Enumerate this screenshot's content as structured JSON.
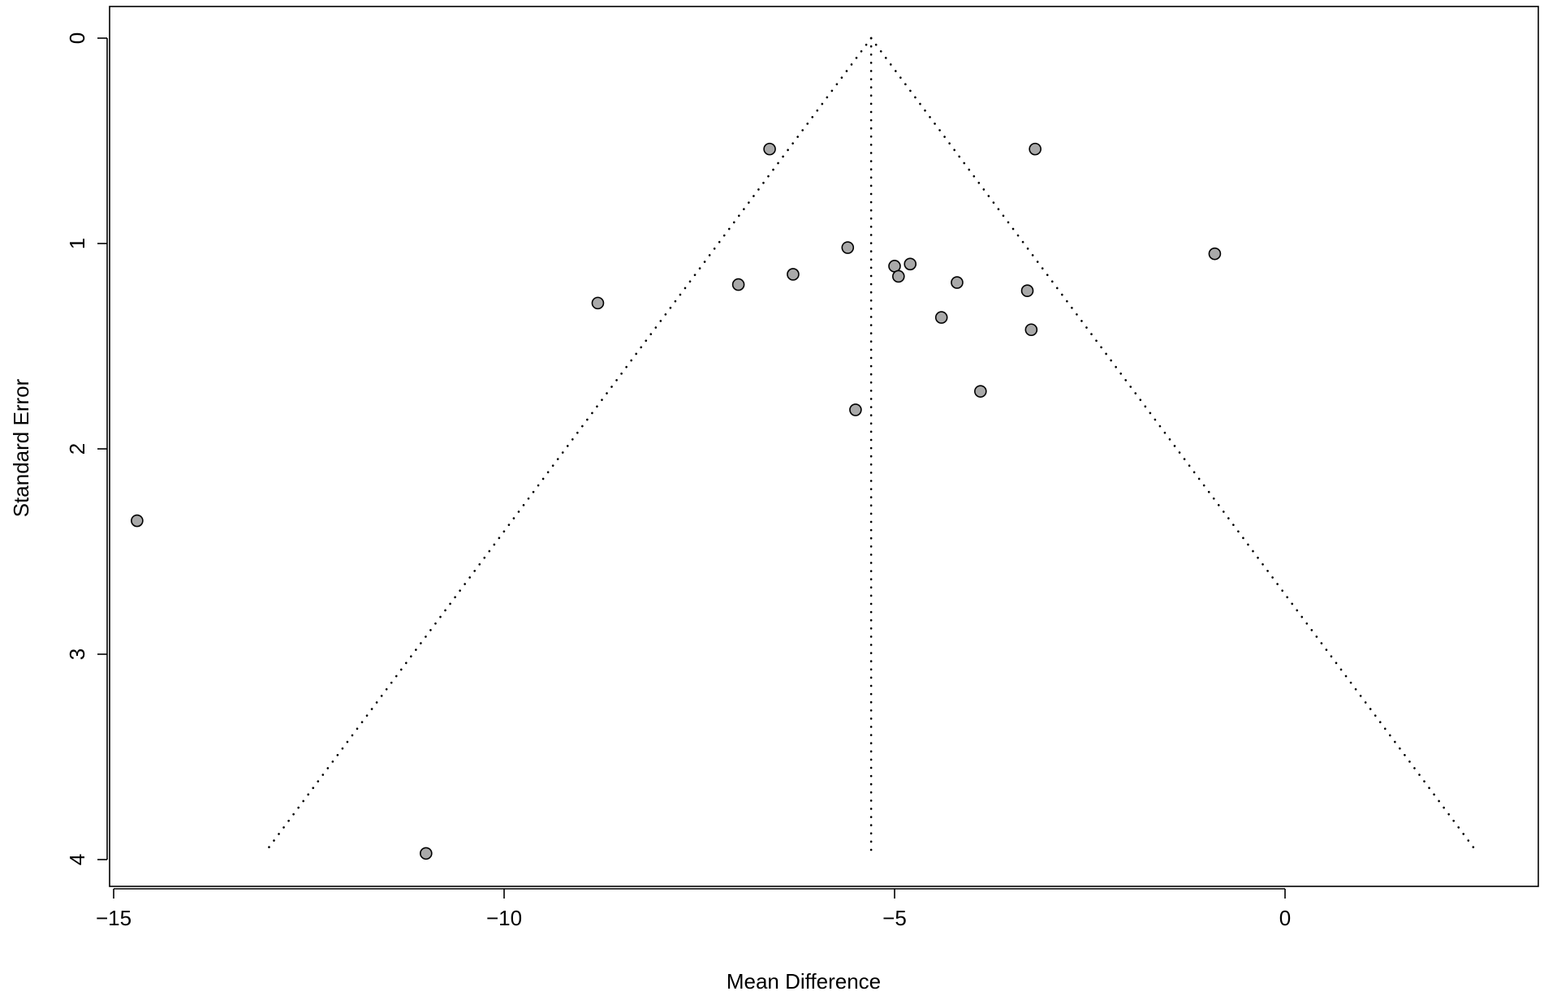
{
  "chart_data": {
    "type": "scatter",
    "title": "",
    "xlabel": "Mean Difference",
    "ylabel": "Standard Error",
    "xlim": [
      -15,
      2.8
    ],
    "ylim": [
      0,
      4.13
    ],
    "y_reversed": true,
    "x_ticks": [
      -15,
      -10,
      -5,
      0
    ],
    "x_tick_labels": [
      "−15",
      "−10",
      "−5",
      "0"
    ],
    "y_ticks": [
      0,
      1,
      2,
      3,
      4
    ],
    "y_tick_labels": [
      "0",
      "1",
      "2",
      "3",
      "4"
    ],
    "grid": false,
    "legend": "none",
    "pooled_estimate": -5.3,
    "funnel": {
      "apex": [
        -5.3,
        0
      ],
      "left_end": [
        -13.05,
        3.96
      ],
      "right_end": [
        2.45,
        3.96
      ],
      "center_line_end": [
        -5.3,
        3.96
      ],
      "style": "dotted"
    },
    "series": [
      {
        "points": [
          {
            "x": -14.7,
            "y": 2.35
          },
          {
            "x": -11.0,
            "y": 3.97
          },
          {
            "x": -8.8,
            "y": 1.29
          },
          {
            "x": -7.0,
            "y": 1.2
          },
          {
            "x": -6.6,
            "y": 0.54
          },
          {
            "x": -6.3,
            "y": 1.15
          },
          {
            "x": -5.6,
            "y": 1.02
          },
          {
            "x": -5.5,
            "y": 1.81
          },
          {
            "x": -5.0,
            "y": 1.11
          },
          {
            "x": -4.95,
            "y": 1.16
          },
          {
            "x": -4.8,
            "y": 1.1
          },
          {
            "x": -4.4,
            "y": 1.36
          },
          {
            "x": -4.2,
            "y": 1.19
          },
          {
            "x": -3.9,
            "y": 1.72
          },
          {
            "x": -3.3,
            "y": 1.23
          },
          {
            "x": -3.25,
            "y": 1.42
          },
          {
            "x": -3.2,
            "y": 0.54
          },
          {
            "x": -0.9,
            "y": 1.05
          }
        ]
      }
    ],
    "colors": {
      "point_fill": "#a9a9a9",
      "point_stroke": "#000000",
      "lines": "#000000",
      "background": "#ffffff"
    }
  }
}
